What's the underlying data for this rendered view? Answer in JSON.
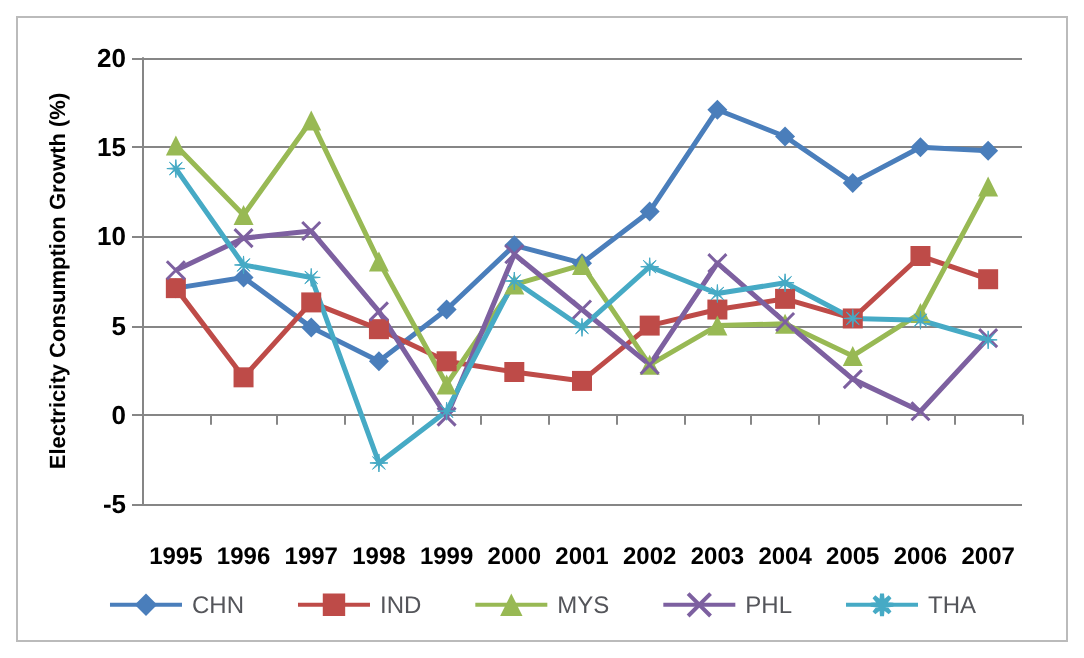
{
  "chart_data": {
    "type": "line",
    "ylabel": "Electricity Consumption Growth (%)",
    "categories": [
      "1995",
      "1996",
      "1997",
      "1998",
      "1999",
      "2000",
      "2001",
      "2002",
      "2003",
      "2004",
      "2005",
      "2006",
      "2007"
    ],
    "ylim": [
      -5,
      20
    ],
    "yticks": [
      -5,
      0,
      5,
      10,
      15,
      20
    ],
    "grid": "y",
    "legend": "bottom",
    "line_style": "solid",
    "series": [
      {
        "name": "CHN",
        "color": "#4a7ebb",
        "marker": "diamond",
        "values": [
          7.1,
          7.7,
          4.9,
          3.0,
          5.9,
          9.5,
          8.5,
          11.4,
          17.1,
          15.6,
          13.0,
          15.0,
          14.8
        ]
      },
      {
        "name": "IND",
        "color": "#be4b48",
        "marker": "square",
        "values": [
          7.1,
          2.1,
          6.3,
          4.8,
          3.0,
          2.4,
          1.9,
          5.0,
          5.9,
          6.5,
          5.4,
          8.9,
          7.6
        ]
      },
      {
        "name": "MYS",
        "color": "#98b954",
        "marker": "triangle",
        "values": [
          15.1,
          11.2,
          16.5,
          8.6,
          1.7,
          7.3,
          8.4,
          2.8,
          5.0,
          5.1,
          3.3,
          5.7,
          12.8
        ]
      },
      {
        "name": "PHL",
        "color": "#7d60a0",
        "marker": "cross",
        "values": [
          8.1,
          9.9,
          10.3,
          5.8,
          -0.1,
          9.0,
          5.9,
          2.8,
          8.5,
          5.2,
          2.0,
          0.2,
          4.3
        ]
      },
      {
        "name": "THA",
        "color": "#46aac5",
        "marker": "star",
        "values": [
          13.8,
          8.4,
          7.7,
          -2.7,
          0.2,
          7.5,
          4.9,
          8.3,
          6.8,
          7.4,
          5.4,
          5.3,
          4.2
        ]
      }
    ]
  }
}
